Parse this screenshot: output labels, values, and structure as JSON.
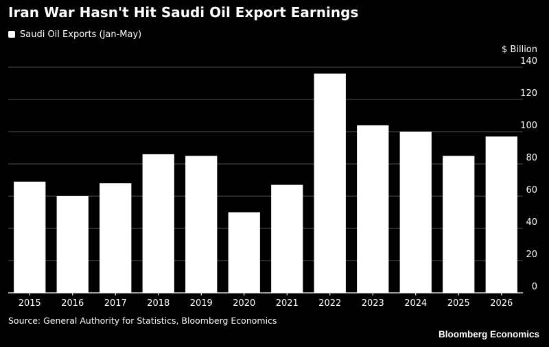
{
  "title": "Iran War Hasn't Hit Saudi Oil Export Earnings",
  "legend": {
    "label": "Saudi Oil Exports (Jan-May)"
  },
  "source": "Source: General Authority for Statistics, Bloomberg Economics",
  "brand": "Bloomberg Economics",
  "colors": {
    "background": "#000000",
    "bar": "#ffffff",
    "grid": "#555555",
    "text": "#ffffff"
  },
  "chart_data": {
    "type": "bar",
    "title": "Iran War Hasn't Hit Saudi Oil Export Earnings",
    "unit_label": "$ Billion",
    "categories": [
      "2015",
      "2016",
      "2017",
      "2018",
      "2019",
      "2020",
      "2021",
      "2022",
      "2023",
      "2024",
      "2025",
      "2026"
    ],
    "series": [
      {
        "name": "Saudi Oil Exports (Jan-May)",
        "values": [
          69,
          60,
          68,
          86,
          85,
          50,
          67,
          136,
          104,
          100,
          85,
          97
        ]
      }
    ],
    "ylim": [
      0,
      140
    ],
    "yticks": [
      0,
      20,
      40,
      60,
      80,
      100,
      120,
      140
    ],
    "grid": true,
    "y_axis_position": "right",
    "legend_position": "top-left"
  }
}
